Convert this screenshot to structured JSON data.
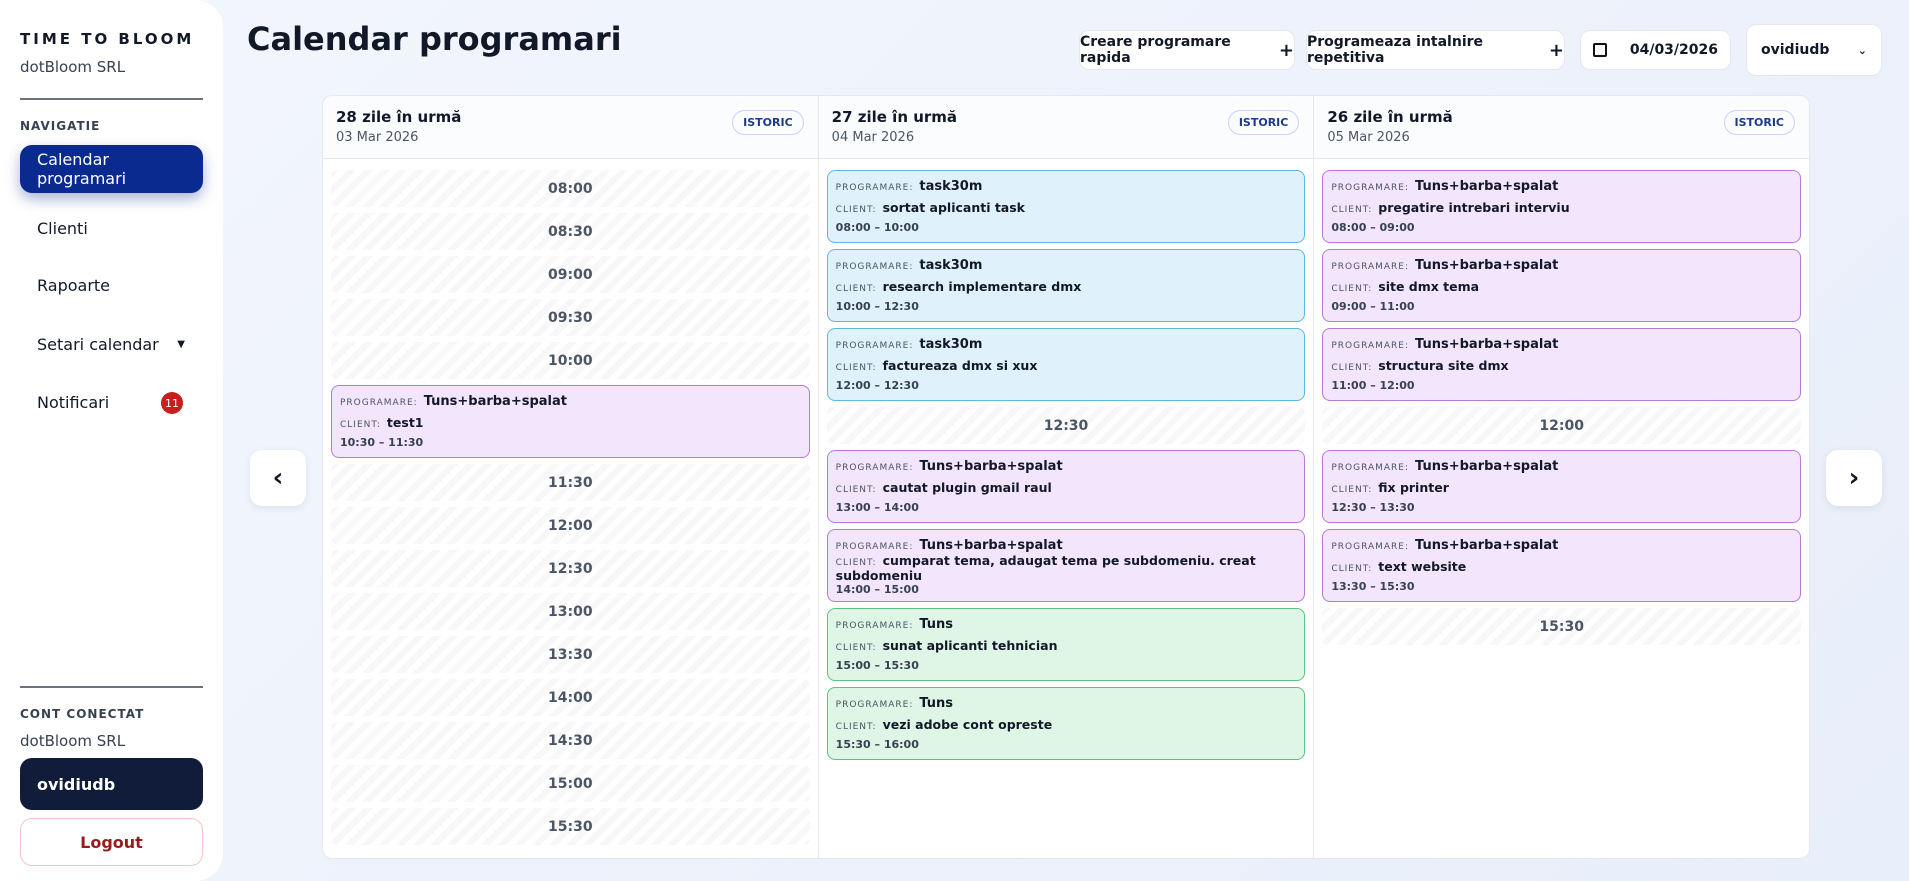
{
  "sidebar": {
    "brand": "TIME TO BLOOM",
    "company": "dotBloom SRL",
    "nav_label": "NAVIGATIE",
    "nav": [
      {
        "label": "Calendar programari"
      },
      {
        "label": "Clienti"
      },
      {
        "label": "Rapoarte"
      },
      {
        "label": "Setari calendar"
      },
      {
        "label": "Notificari",
        "badge": "11"
      }
    ],
    "account_label": "CONT CONECTAT",
    "account_company": "dotBloom SRL",
    "user": "ovidiudb",
    "logout": "Logout"
  },
  "header": {
    "title": "Calendar programari",
    "buttons": [
      "Creare programare rapida",
      "Programeaza intalnire repetitiva"
    ],
    "date": "04/03/2026",
    "user": "ovidiudb"
  },
  "labels": {
    "programare": "PROGRAMARE:",
    "client": "CLIENT:"
  },
  "columns": [
    {
      "title": "28 zile în urmă",
      "date": "03 Mar 2026",
      "badge": "ISTORIC",
      "items": [
        {
          "time": "08:00"
        },
        {
          "time": "08:30"
        },
        {
          "time": "09:00"
        },
        {
          "time": "09:30"
        },
        {
          "time": "10:00"
        },
        {
          "programare": "Tuns+barba+spalat",
          "client": "test1",
          "time": "10:30 – 11:30"
        },
        {
          "time": "11:30"
        },
        {
          "time": "12:00"
        },
        {
          "time": "12:30"
        },
        {
          "time": "13:00"
        },
        {
          "time": "13:30"
        },
        {
          "time": "14:00"
        },
        {
          "time": "14:30"
        },
        {
          "time": "15:00"
        },
        {
          "time": "15:30"
        }
      ]
    },
    {
      "title": "27 zile în urmă",
      "date": "04 Mar 2026",
      "badge": "ISTORIC",
      "items": [
        {
          "programare": "task30m",
          "client": "sortat aplicanti task",
          "time": "08:00 – 10:00"
        },
        {
          "programare": "task30m",
          "client": "research implementare dmx",
          "time": "10:00 – 12:30"
        },
        {
          "programare": "task30m",
          "client": "factureaza dmx si xux",
          "time": "12:00 – 12:30"
        },
        {
          "time": "12:30"
        },
        {
          "programare": "Tuns+barba+spalat",
          "client": "cautat plugin gmail raul",
          "time": "13:00 – 14:00"
        },
        {
          "programare": "Tuns+barba+spalat",
          "client": "cumparat tema, adaugat tema pe subdomeniu. creat subdomeniu",
          "time": "14:00 – 15:00"
        },
        {
          "programare": "Tuns",
          "client": "sunat aplicanti tehnician",
          "time": "15:00 – 15:30"
        },
        {
          "programare": "Tuns",
          "client": "vezi adobe cont opreste",
          "time": "15:30 – 16:00"
        }
      ]
    },
    {
      "title": "26 zile în urmă",
      "date": "05 Mar 2026",
      "badge": "ISTORIC",
      "items": [
        {
          "programare": "Tuns+barba+spalat",
          "client": "pregatire intrebari interviu",
          "time": "08:00 – 09:00"
        },
        {
          "programare": "Tuns+barba+spalat",
          "client": "site dmx tema",
          "time": "09:00 – 11:00"
        },
        {
          "programare": "Tuns+barba+spalat",
          "client": "structura site dmx",
          "time": "11:00 – 12:00"
        },
        {
          "time": "12:00"
        },
        {
          "programare": "Tuns+barba+spalat",
          "client": "fix printer",
          "time": "12:30 – 13:30"
        },
        {
          "programare": "Tuns+barba+spalat",
          "client": "text website",
          "time": "13:30 – 15:30"
        },
        {
          "time": "15:30"
        }
      ]
    }
  ]
}
